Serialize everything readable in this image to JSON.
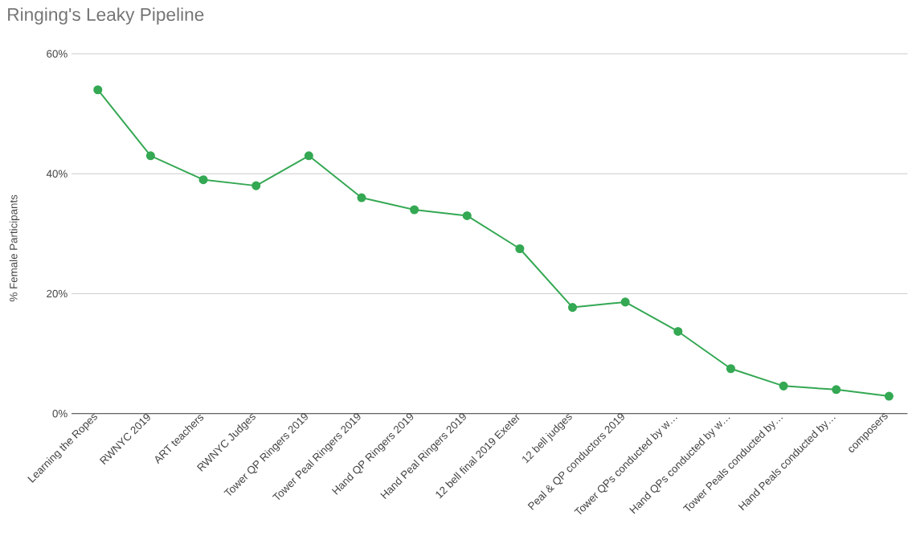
{
  "chart_data": {
    "type": "line",
    "title": "Ringing's Leaky Pipeline",
    "ylabel": "% Female Participants",
    "categories": [
      "Learning the Ropes",
      "RWNYC 2019",
      "ART teachers",
      "RWNYC Judges",
      "Tower QP Ringers 2019",
      "Tower Peal Ringers 2019",
      "Hand QP Ringers 2019",
      "Hand Peal Ringers 2019",
      "12 bell final 2019 Exeter",
      "12 bell judges",
      "Peal & QP conductors 2019",
      "Tower QPs conducted by w…",
      "Hand QPs conducted by w…",
      "Tower Peals conducted by…",
      "Hand Peals conducted by…",
      "composers"
    ],
    "series": [
      {
        "color": "#34a853",
        "values": [
          54,
          43,
          39,
          38,
          43,
          36,
          34,
          33,
          27.5,
          17.7,
          18.6,
          13.7,
          7.5,
          4.6,
          4.0,
          2.9
        ]
      }
    ],
    "ylim": [
      0,
      60
    ],
    "yticks": [
      {
        "value": 0,
        "label": "0%"
      },
      {
        "value": 20,
        "label": "20%"
      },
      {
        "value": 40,
        "label": "40%"
      },
      {
        "value": 60,
        "label": "60%"
      }
    ],
    "grid": "y",
    "marker": "circle",
    "line_style": "solid"
  }
}
